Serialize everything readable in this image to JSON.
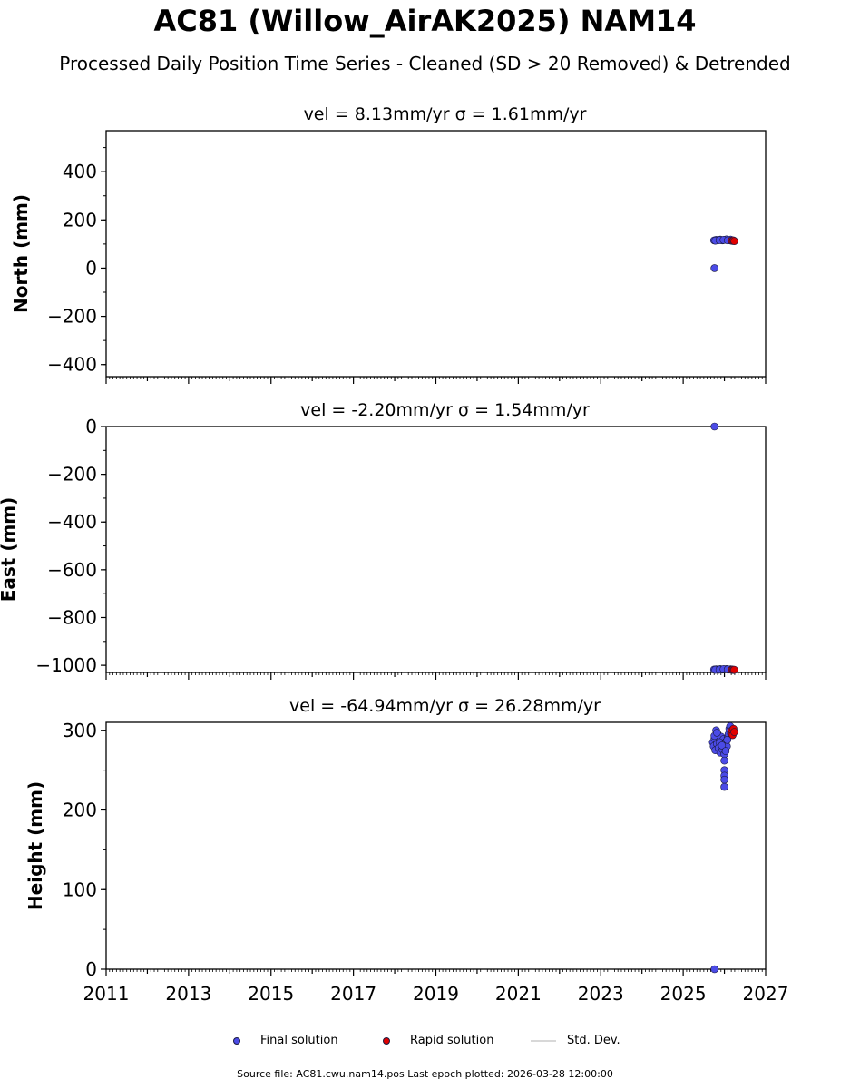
{
  "title": "AC81 (Willow_AirAK2025) NAM14",
  "subtitle": "Processed Daily Position Time Series - Cleaned (SD > 20 Removed) & Detrended",
  "source_text": "Source file: AC81.cwu.nam14.pos  Last epoch plotted: 2026-03-28 12:00:00",
  "legend": {
    "final": "Final solution",
    "rapid": "Rapid solution",
    "stddev": "Std. Dev."
  },
  "colors": {
    "final": "#4b4be6",
    "rapid": "#e00000",
    "stddev": "#d8d8d8",
    "edge": "#1a1a40"
  },
  "chart_data": [
    {
      "type": "scatter",
      "title": "vel = 8.13mm/yr   σ = 1.61mm/yr",
      "ylabel": "North (mm)",
      "xlim": [
        2011,
        2027
      ],
      "ylim": [
        -450,
        570
      ],
      "yticks": [
        400,
        200,
        0,
        -200,
        -400
      ],
      "series": [
        {
          "name": "Final solution",
          "x": [
            2025.75,
            2025.8,
            2025.85,
            2025.9,
            2025.95,
            2026.0,
            2026.05,
            2026.1,
            2026.15,
            2025.78,
            2025.88,
            2025.98,
            2026.08,
            2025.76
          ],
          "y": [
            115,
            117,
            116,
            118,
            115,
            117,
            119,
            116,
            118,
            114,
            116,
            117,
            115,
            0
          ]
        },
        {
          "name": "Rapid solution",
          "x": [
            2026.17,
            2026.2,
            2026.22,
            2026.24
          ],
          "y": [
            114,
            113,
            115,
            112
          ]
        }
      ]
    },
    {
      "type": "scatter",
      "title": "vel = -2.20mm/yr   σ = 1.54mm/yr",
      "ylabel": "East (mm)",
      "xlim": [
        2011,
        2027
      ],
      "ylim": [
        -1030,
        0
      ],
      "yticks": [
        0,
        -200,
        -400,
        -600,
        -800,
        -1000
      ],
      "series": [
        {
          "name": "Final solution",
          "x": [
            2025.75,
            2025.8,
            2025.85,
            2025.9,
            2025.95,
            2026.0,
            2026.05,
            2026.1,
            2026.15,
            2025.78,
            2025.88,
            2025.98,
            2026.08,
            2025.76
          ],
          "y": [
            -1018,
            -1017,
            -1019,
            -1016,
            -1018,
            -1017,
            -1016,
            -1018,
            -1017,
            -1019,
            -1018,
            -1016,
            -1017,
            0
          ]
        },
        {
          "name": "Rapid solution",
          "x": [
            2026.17,
            2026.2,
            2026.22,
            2026.24
          ],
          "y": [
            -1019,
            -1018,
            -1020,
            -1019
          ]
        }
      ]
    },
    {
      "type": "scatter",
      "title": "vel = -64.94mm/yr   σ = 26.28mm/yr",
      "ylabel": "Height (mm)",
      "xlim": [
        2011,
        2027
      ],
      "ylim": [
        0,
        310
      ],
      "yticks": [
        300,
        200,
        100,
        0
      ],
      "xticks": [
        2011,
        2013,
        2015,
        2017,
        2019,
        2021,
        2023,
        2025,
        2027
      ],
      "series": [
        {
          "name": "Final solution",
          "x": [
            2025.72,
            2025.74,
            2025.76,
            2025.78,
            2025.8,
            2025.82,
            2025.84,
            2025.86,
            2025.88,
            2025.9,
            2025.92,
            2025.94,
            2025.96,
            2025.98,
            2026.0,
            2026.0,
            2026.0,
            2026.0,
            2026.0,
            2026.0,
            2026.02,
            2026.04,
            2026.06,
            2026.08,
            2026.1,
            2026.12,
            2026.14,
            2025.76,
            2025.82,
            2025.88,
            2025.94,
            2026.03,
            2026.07,
            2025.76
          ],
          "y": [
            285,
            280,
            290,
            275,
            300,
            283,
            295,
            278,
            288,
            272,
            292,
            284,
            276,
            289,
            270,
            262,
            250,
            243,
            238,
            229,
            282,
            286,
            280,
            291,
            295,
            302,
            305,
            293,
            297,
            285,
            281,
            274,
            288,
            0
          ]
        },
        {
          "name": "Rapid solution",
          "x": [
            2026.16,
            2026.18,
            2026.2,
            2026.22,
            2026.24
          ],
          "y": [
            296,
            300,
            294,
            302,
            298
          ]
        }
      ]
    }
  ]
}
